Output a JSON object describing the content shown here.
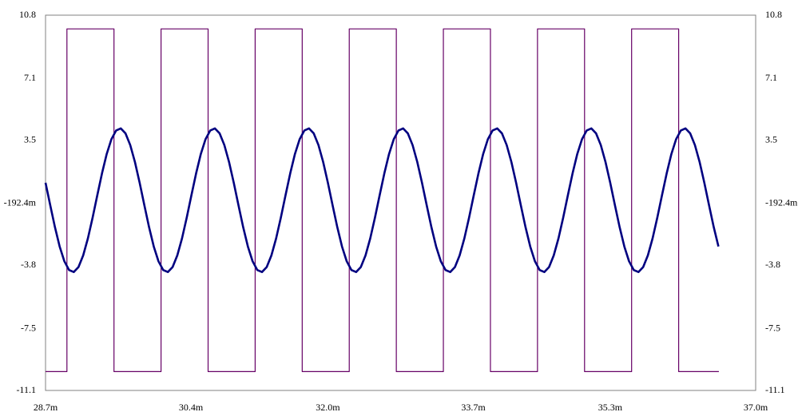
{
  "chart_data": {
    "type": "line",
    "xlim": [
      0.0287,
      0.037
    ],
    "xticks": [
      {
        "value": 0.0287,
        "label": "28.7m"
      },
      {
        "value": 0.0304,
        "label": "30.4m"
      },
      {
        "value": 0.032,
        "label": "32.0m"
      },
      {
        "value": 0.0337,
        "label": "33.7m"
      },
      {
        "value": 0.0353,
        "label": "35.3m"
      },
      {
        "value": 0.037,
        "label": "37.0m"
      }
    ],
    "x_minor_ticks": [
      0.02955,
      0.0312,
      0.03285,
      0.0345,
      0.03615
    ],
    "ylim": [
      -11.1,
      10.8
    ],
    "yticks": [
      {
        "value": -11.1,
        "label": "-11.1"
      },
      {
        "value": -7.5,
        "label": "-7.5"
      },
      {
        "value": -3.8,
        "label": "-3.8"
      },
      {
        "value": -0.1924,
        "label": "-192.4m"
      },
      {
        "value": 3.5,
        "label": "3.5"
      },
      {
        "value": 7.1,
        "label": "7.1"
      },
      {
        "value": 10.8,
        "label": "10.8"
      }
    ],
    "grid": true,
    "right_axis_labels": true,
    "series": [
      {
        "color": "#660066",
        "width": 1.2,
        "x": [
          0.0287,
          0.02895,
          0.02895,
          0.0295,
          0.0295,
          0.03005,
          0.03005,
          0.0306,
          0.0306,
          0.03115,
          0.03115,
          0.0317,
          0.0317,
          0.03225,
          0.03225,
          0.0328,
          0.0328,
          0.03335,
          0.03335,
          0.0339,
          0.0339,
          0.03445,
          0.03445,
          0.035,
          0.035,
          0.03555,
          0.03555,
          0.0361,
          0.0361,
          0.03657
        ],
        "values": [
          -10,
          -10,
          10,
          10,
          -10,
          -10,
          10,
          10,
          -10,
          -10,
          10,
          10,
          -10,
          -10,
          10,
          10,
          -10,
          -10,
          10,
          10,
          -10,
          -10,
          10,
          10,
          -10,
          -10,
          10,
          10,
          -10,
          -10
        ]
      },
      {
        "color": "#000080",
        "width": 2.6,
        "x": [
          0.0287,
          0.028755,
          0.02881,
          0.028865,
          0.02892,
          0.028975,
          0.02903,
          0.029085,
          0.02914,
          0.029195,
          0.02925,
          0.029305,
          0.02936,
          0.029415,
          0.02947,
          0.029525,
          0.02958,
          0.029635,
          0.02969,
          0.029745,
          0.0298,
          0.029855,
          0.02991,
          0.029965,
          0.03002,
          0.030075,
          0.03013,
          0.030185,
          0.03024,
          0.030295,
          0.03035,
          0.030405,
          0.03046,
          0.030515,
          0.03057,
          0.030625,
          0.03068,
          0.030735,
          0.03079,
          0.030845,
          0.0309,
          0.030955,
          0.03101,
          0.031065,
          0.03112,
          0.031175,
          0.03123,
          0.031285,
          0.03134,
          0.031395,
          0.03145,
          0.031505,
          0.03156,
          0.031615,
          0.03167,
          0.031725,
          0.03178,
          0.031835,
          0.03189,
          0.031945,
          0.032,
          0.032055,
          0.03211,
          0.032165,
          0.03222,
          0.032275,
          0.03233,
          0.032385,
          0.03244,
          0.032495,
          0.03255,
          0.032605,
          0.03266,
          0.032715,
          0.03277,
          0.032825,
          0.03288,
          0.032935,
          0.03299,
          0.033045,
          0.0331,
          0.033155,
          0.03321,
          0.033265,
          0.03332,
          0.033375,
          0.03343,
          0.033485,
          0.03354,
          0.033595,
          0.03365,
          0.033705,
          0.03376,
          0.033815,
          0.03387,
          0.033925,
          0.03398,
          0.034035,
          0.03409,
          0.034145,
          0.0342,
          0.034255,
          0.03431,
          0.034365,
          0.03442,
          0.034475,
          0.03453,
          0.034585,
          0.03464,
          0.034695,
          0.03475,
          0.034805,
          0.03486,
          0.034915,
          0.03497,
          0.035025,
          0.03508,
          0.035135,
          0.03519,
          0.035245,
          0.0353,
          0.035355,
          0.03541,
          0.035465,
          0.03552,
          0.035575,
          0.03563,
          0.035685,
          0.03574,
          0.035795,
          0.03585,
          0.035905,
          0.03596,
          0.036015,
          0.03607,
          0.036125,
          0.03618,
          0.036235,
          0.03629,
          0.036345,
          0.0364,
          0.036455,
          0.03651,
          0.036565
        ],
        "values": [
          1.02,
          -0.29,
          -1.57,
          -2.7,
          -3.56,
          -4.07,
          -4.19,
          -3.9,
          -3.22,
          -2.23,
          -1.02,
          0.29,
          1.57,
          2.7,
          3.56,
          4.07,
          4.19,
          3.9,
          3.22,
          2.23,
          1.02,
          -0.29,
          -1.57,
          -2.7,
          -3.56,
          -4.07,
          -4.19,
          -3.9,
          -3.22,
          -2.23,
          -1.02,
          0.29,
          1.57,
          2.7,
          3.56,
          4.07,
          4.19,
          3.9,
          3.22,
          2.23,
          1.02,
          -0.29,
          -1.57,
          -2.7,
          -3.56,
          -4.07,
          -4.19,
          -3.9,
          -3.22,
          -2.23,
          -1.02,
          0.29,
          1.57,
          2.7,
          3.56,
          4.07,
          4.19,
          3.9,
          3.22,
          2.23,
          1.02,
          -0.29,
          -1.57,
          -2.7,
          -3.56,
          -4.07,
          -4.19,
          -3.9,
          -3.22,
          -2.23,
          -1.02,
          0.29,
          1.57,
          2.7,
          3.56,
          4.07,
          4.19,
          3.9,
          3.22,
          2.23,
          1.02,
          -0.29,
          -1.57,
          -2.7,
          -3.56,
          -4.07,
          -4.19,
          -3.9,
          -3.22,
          -2.23,
          -1.02,
          0.29,
          1.57,
          2.7,
          3.56,
          4.07,
          4.19,
          3.9,
          3.22,
          2.23,
          1.02,
          -0.29,
          -1.57,
          -2.7,
          -3.56,
          -4.07,
          -4.19,
          -3.9,
          -3.22,
          -2.23,
          -1.02,
          0.29,
          1.57,
          2.7,
          3.56,
          4.07,
          4.19,
          3.9,
          3.22,
          2.23,
          1.02,
          -0.29,
          -1.57,
          -2.7,
          -3.56,
          -4.07,
          -4.19,
          -3.9,
          -3.22,
          -2.23,
          -1.02,
          0.29,
          1.57,
          2.7,
          3.56,
          4.07,
          4.19,
          3.9,
          3.22,
          2.23,
          1.02,
          -0.29,
          -1.57,
          -2.7
        ]
      }
    ]
  }
}
